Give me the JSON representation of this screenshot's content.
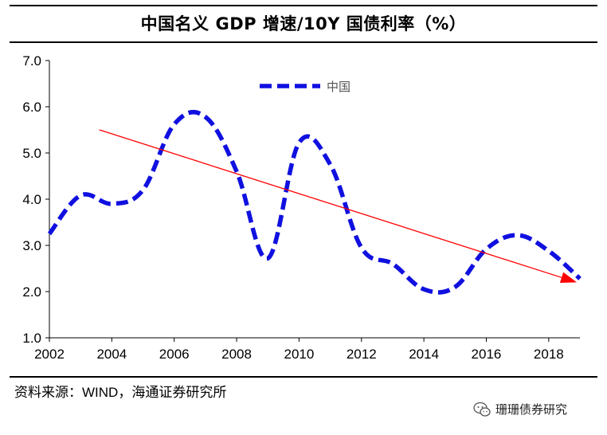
{
  "title": "中国名义 GDP 增速/10Y 国债利率（%）",
  "source": "资料来源：WIND，海通证券研究所",
  "watermark": "珊珊债券研究",
  "colors": {
    "series": "#1010e0",
    "trend": "#ff0000",
    "axis": "#000000"
  },
  "chart_data": {
    "type": "line",
    "title": "中国名义 GDP 增速/10Y 国债利率（%）",
    "xlabel": "",
    "ylabel": "",
    "xlim": [
      2002,
      2019
    ],
    "ylim": [
      1.0,
      7.0
    ],
    "x_ticks": [
      2002,
      2004,
      2006,
      2008,
      2010,
      2012,
      2014,
      2016,
      2018
    ],
    "y_ticks": [
      1.0,
      2.0,
      3.0,
      4.0,
      5.0,
      6.0,
      7.0
    ],
    "y_tick_labels": [
      "1.0",
      "2.0",
      "3.0",
      "4.0",
      "5.0",
      "6.0",
      "7.0"
    ],
    "legend": {
      "position": "top-center",
      "entries": [
        "中国"
      ]
    },
    "grid": false,
    "series": [
      {
        "name": "中国",
        "style": "dashed",
        "x": [
          2002,
          2003,
          2004,
          2005,
          2006,
          2007,
          2008,
          2009,
          2010,
          2011,
          2012,
          2013,
          2014,
          2015,
          2016,
          2017,
          2018,
          2019
        ],
        "values": [
          3.25,
          4.08,
          3.9,
          4.2,
          5.62,
          5.78,
          4.6,
          2.72,
          5.22,
          4.75,
          2.95,
          2.6,
          2.05,
          2.1,
          2.92,
          3.22,
          2.88,
          2.28
        ]
      }
    ],
    "annotations": [
      {
        "type": "trend-arrow",
        "from": {
          "x": 2003.6,
          "y": 5.5
        },
        "to": {
          "x": 2018.9,
          "y": 2.2
        }
      }
    ]
  }
}
